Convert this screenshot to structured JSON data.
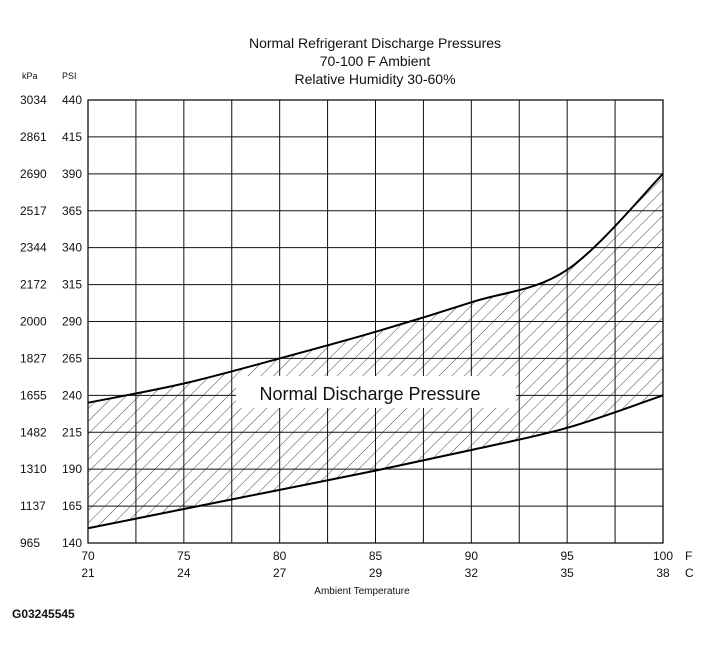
{
  "chart_data": {
    "type": "area",
    "title_lines": [
      "Normal Refrigerant Discharge Pressures",
      "70-100 F Ambient",
      "Relative Humidity 30-60%"
    ],
    "x_values_f": [
      70,
      75,
      80,
      85,
      90,
      95,
      100
    ],
    "x_values_c": [
      21,
      24,
      27,
      29,
      32,
      35,
      38
    ],
    "x_units": [
      "F",
      "C"
    ],
    "xlabel": "Ambient Temperature",
    "xlim": [
      70,
      100
    ],
    "y_ticks_psi": [
      140,
      165,
      190,
      215,
      240,
      265,
      290,
      315,
      340,
      365,
      390,
      415,
      440
    ],
    "y_ticks_kpa": [
      965,
      1137,
      1310,
      1482,
      1655,
      1827,
      2000,
      2172,
      2344,
      2517,
      2690,
      2861,
      3034
    ],
    "y_units": [
      "kPa",
      "PSI"
    ],
    "ylim": [
      140,
      440
    ],
    "grid": true,
    "band_label": "Normal Discharge Pressure",
    "series": [
      {
        "x": [
          70,
          75,
          80,
          85,
          90,
          95,
          100
        ],
        "values": [
          235,
          248,
          265,
          283,
          303,
          325,
          390
        ]
      },
      {
        "x": [
          70,
          75,
          80,
          85,
          90,
          95,
          100
        ],
        "values": [
          150,
          163,
          176,
          189,
          203,
          218,
          240
        ]
      }
    ],
    "upper_curve": [
      [
        70,
        235
      ],
      [
        75,
        248
      ],
      [
        80,
        265
      ],
      [
        85,
        283
      ],
      [
        90,
        303
      ],
      [
        95,
        325
      ],
      [
        100,
        390
      ]
    ],
    "lower_curve": [
      [
        70,
        150
      ],
      [
        75,
        163
      ],
      [
        80,
        176
      ],
      [
        85,
        189
      ],
      [
        90,
        203
      ],
      [
        95,
        218
      ],
      [
        100,
        240
      ]
    ]
  },
  "figure_id": "G03245545"
}
